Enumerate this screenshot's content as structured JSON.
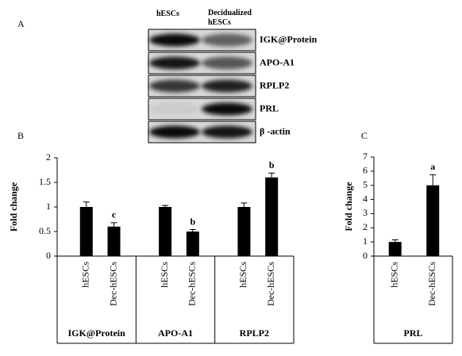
{
  "panel_a": {
    "label": "A",
    "lanes": [
      "hESCs",
      "Decidualized hESCs"
    ],
    "proteins": [
      "IGK@Protein",
      "APO-A1",
      "RPLP2",
      "PRL",
      "β -actin"
    ]
  },
  "chart_data": [
    {
      "type": "bar",
      "panel": "B",
      "ylabel": "Fold change",
      "color": "#000000",
      "categories": [
        "hESCs",
        "Dec-hESCs",
        "hESCs",
        "Dec-hESCs",
        "hESCs",
        "Dec-hESCs"
      ],
      "groups": [
        "IGK@Protein",
        "APO-A1",
        "RPLP2"
      ],
      "values": [
        1,
        0.6,
        1,
        0.5,
        1,
        1.6
      ],
      "errors": [
        0.1,
        0.08,
        0.03,
        0.04,
        0.08,
        0.09
      ],
      "significance": [
        null,
        "c",
        null,
        "b",
        null,
        "b"
      ],
      "ylim": [
        0,
        2
      ],
      "yticks": [
        0,
        0.5,
        1,
        1.5,
        2
      ]
    },
    {
      "type": "bar",
      "panel": "C",
      "ylabel": "Fold change",
      "color": "#000000",
      "categories": [
        "hESCs",
        "Dec-hESCs"
      ],
      "groups": [
        "PRL"
      ],
      "values": [
        1,
        5
      ],
      "errors": [
        0.15,
        0.75
      ],
      "significance": [
        null,
        "a"
      ],
      "ylim": [
        0,
        7
      ],
      "yticks": [
        0,
        1,
        2,
        3,
        4,
        5,
        6,
        7
      ]
    }
  ]
}
